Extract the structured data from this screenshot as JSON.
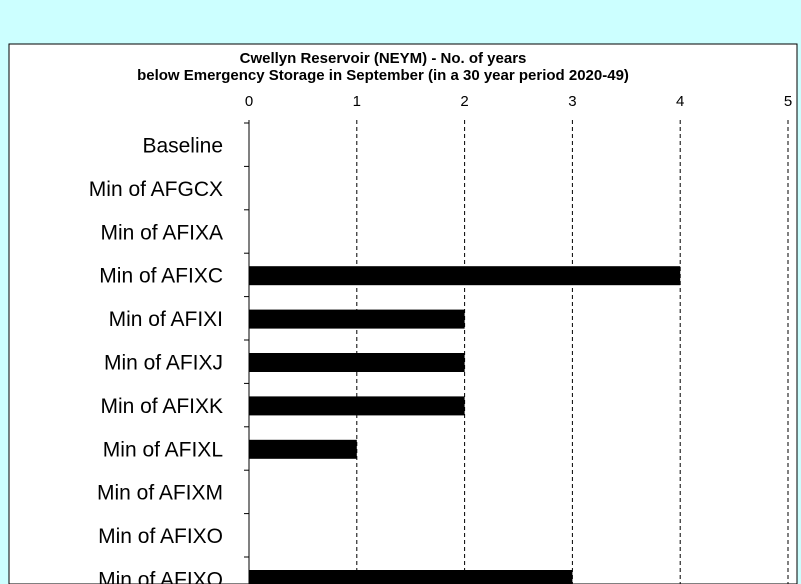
{
  "colors": {
    "background": "#ccffff",
    "chart_area": "#ffffff",
    "bar": "#000000",
    "gridline": "#000000"
  },
  "chart_data": {
    "type": "bar",
    "orientation": "horizontal",
    "title": "Cwellyn Reservoir (NEYM) - No. of years",
    "subtitle": "below Emergency Storage in September (in a 30 year period 2020-49)",
    "categories": [
      "Baseline",
      "Min of AFGCX",
      "Min of AFIXA",
      "Min of AFIXC",
      "Min of AFIXI",
      "Min of AFIXJ",
      "Min of AFIXK",
      "Min of AFIXL",
      "Min of AFIXM",
      "Min of AFIXO",
      "Min of AFIXQ"
    ],
    "values": [
      0,
      0,
      0,
      4,
      2,
      2,
      2,
      1,
      0,
      0,
      3
    ],
    "xlim": [
      0,
      5
    ],
    "xticks": [
      "0",
      "1",
      "2",
      "3",
      "4",
      "5"
    ],
    "x_axis_position": "top",
    "grid": "vertical dashed",
    "legend": "none"
  }
}
